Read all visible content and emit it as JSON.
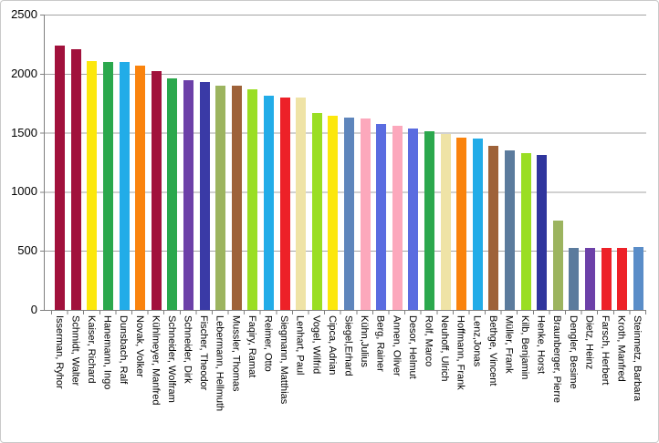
{
  "chart_data": {
    "type": "bar",
    "title": "",
    "xlabel": "",
    "ylabel": "",
    "legend": "none",
    "grid": "horizontal",
    "ylim": [
      0,
      2500
    ],
    "yticks": [
      0,
      500,
      1000,
      1500,
      2000,
      2500
    ],
    "axis_color": "#808080",
    "gridline_color": "#a3a3a3",
    "categories": [
      "Isserman, Ryhor",
      "Schmidt, Walter",
      "Kaiser, Richard",
      "Hanemann, Ingo",
      "Dunsbach, Ralf",
      "Novak, Volker",
      "Kühlmeyer, Manfred",
      "Schneider, Wolfram",
      "Schneider, Dirk",
      "Fischer, Theodor",
      "Lebermann, Hellmuth",
      "Mussler, Thomas",
      "Faqiry, Ramat",
      "Reimer, Otto",
      "Siegmann, Matthias",
      "Lenhart, Paul",
      "Vogel, Wilfrid",
      "Cipca, Adrian",
      "Siegel,Erhard",
      "Kühn,Julius",
      "Berg, Rainer",
      "Annen, Oliver",
      "Desor, Helmut",
      "Rolf, Marco",
      "Neuhoff, Ulrich",
      "Hoffmann, Frank",
      "Lenz,Jonas",
      "Bethge, Vincent",
      "Müller, Frank",
      "Kilb, Benjamin",
      "Henke, Horst",
      "Braunberger, Pierre",
      "Dengler, Besime",
      "Dietz, Heinz",
      "Farsch, Herbert",
      "Kroth, Manfred",
      "Steinmetz, Barbara"
    ],
    "values": [
      2240,
      2205,
      2110,
      2100,
      2100,
      2070,
      2025,
      1960,
      1945,
      1930,
      1895,
      1895,
      1865,
      1810,
      1795,
      1795,
      1670,
      1645,
      1630,
      1620,
      1575,
      1555,
      1535,
      1515,
      1490,
      1460,
      1450,
      1390,
      1350,
      1330,
      1310,
      760,
      525,
      525,
      525,
      525,
      530
    ],
    "colors": [
      "#A1113C",
      "#A1113C",
      "#FCE70C",
      "#2BA84D",
      "#22ACE8",
      "#FA830D",
      "#A1113C",
      "#2BA84D",
      "#6C40A8",
      "#3A3AA6",
      "#9CB45F",
      "#9E6239",
      "#9ADE23",
      "#22ACE8",
      "#ED2128",
      "#EFE3A6",
      "#9ADE23",
      "#FCE70C",
      "#5E85BC",
      "#FCA8BC",
      "#5A6CE0",
      "#FCA8BC",
      "#5A6CE0",
      "#2BA84D",
      "#EFE3A6",
      "#FA830D",
      "#22ACE8",
      "#9E6239",
      "#5B7B9D",
      "#9ADE23",
      "#2F359D",
      "#9CB45F",
      "#5B7B9D",
      "#6C40A8",
      "#ED2128",
      "#ED2128",
      "#5A8DC8"
    ]
  }
}
